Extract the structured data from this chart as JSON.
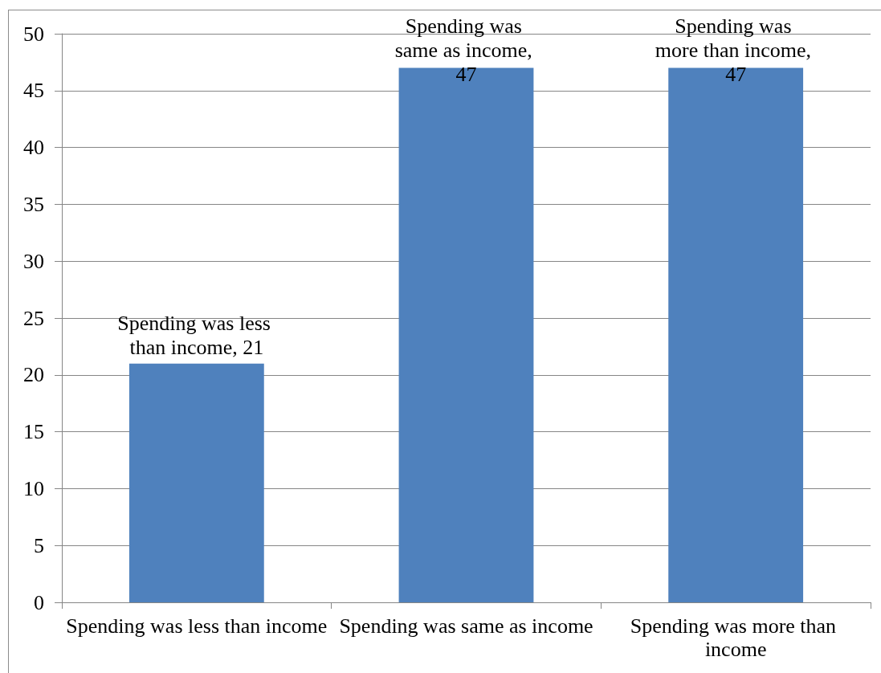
{
  "chart_data": {
    "type": "bar",
    "categories": [
      "Spending was less than income",
      "Spending was same as income",
      "Spending was more than income"
    ],
    "values": [
      21,
      47,
      47
    ],
    "color": "#4f81bd",
    "value_labels": [
      "Spending was less than income, 21",
      "Spending was same as income, 47",
      "Spending was more than income, 47"
    ],
    "ylim": [
      0,
      50
    ],
    "yticks": [
      0,
      5,
      10,
      15,
      20,
      25,
      30,
      35,
      40,
      45,
      50
    ],
    "grid": "y"
  }
}
